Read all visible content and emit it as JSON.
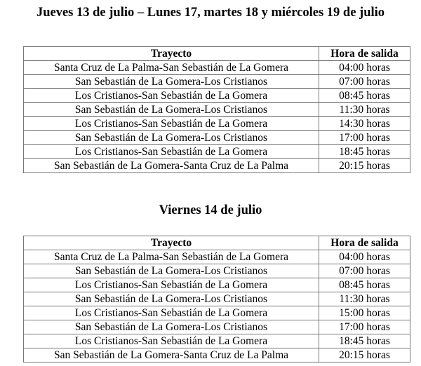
{
  "sections": [
    {
      "title": "Jueves 13 de julio – Lunes 17, martes 18 y miércoles 19 de julio",
      "headers": [
        "Trayecto",
        "Hora de salida"
      ],
      "rows": [
        [
          "Santa Cruz de La Palma-San Sebastián de La Gomera",
          "04:00 horas"
        ],
        [
          "San Sebastián de La Gomera-Los Cristianos",
          "07:00 horas"
        ],
        [
          "Los Cristianos-San Sebastián de La Gomera",
          "08:45 horas"
        ],
        [
          "San Sebastián de La Gomera-Los Cristianos",
          "11:30 horas"
        ],
        [
          "Los Cristianos-San Sebastián de La Gomera",
          "14:30 horas"
        ],
        [
          "San Sebastián de La Gomera-Los Cristianos",
          "17:00 horas"
        ],
        [
          "Los Cristianos-San Sebastián de La Gomera",
          "18:45 horas"
        ],
        [
          "San Sebastián de La Gomera-Santa Cruz de La Palma",
          "20:15 horas"
        ]
      ]
    },
    {
      "title": "Viernes 14 de julio",
      "headers": [
        "Trayecto",
        "Hora de salida"
      ],
      "rows": [
        [
          "Santa Cruz de La Palma-San Sebastián de La Gomera",
          "04:00 horas"
        ],
        [
          "San Sebastián de La Gomera-Los Cristianos",
          "07:00 horas"
        ],
        [
          "Los Cristianos-San Sebastián de La Gomera",
          "08:45 horas"
        ],
        [
          "San Sebastián de La Gomera-Los Cristianos",
          "11:30 horas"
        ],
        [
          "Los Cristianos-San Sebastián de La Gomera",
          "15:00 horas"
        ],
        [
          "San Sebastián de La Gomera-Los Cristianos",
          "17:00 horas"
        ],
        [
          "Los Cristianos-San Sebastián de La Gomera",
          "18:45 horas"
        ],
        [
          "San Sebastián de La Gomera-Santa Cruz de La Palma",
          "20:15 horas"
        ]
      ]
    }
  ]
}
